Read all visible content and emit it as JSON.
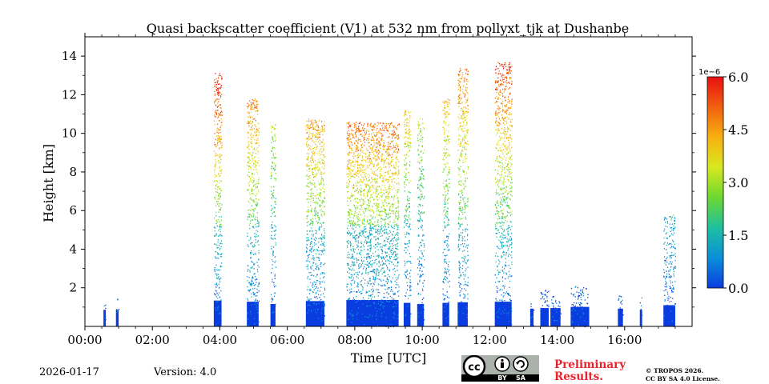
{
  "chart_data": {
    "type": "heatmap",
    "title": "Quasi backscatter coefficient (V1) at 532 nm from pollyxt_tjk at Dushanbe",
    "xlabel": "Time [UTC]",
    "ylabel": "Height [km]",
    "xlim": [
      0,
      18
    ],
    "ylim": [
      0,
      15
    ],
    "x_ticks": [
      0,
      2,
      4,
      6,
      8,
      10,
      12,
      14,
      16
    ],
    "x_tick_labels": [
      "00:00",
      "02:00",
      "04:00",
      "06:00",
      "08:00",
      "10:00",
      "12:00",
      "14:00",
      "16:00"
    ],
    "y_ticks": [
      2,
      4,
      6,
      8,
      10,
      12,
      14
    ],
    "y_tick_labels": [
      "2",
      "4",
      "6",
      "8",
      "10",
      "12",
      "14"
    ],
    "colorbar": {
      "min": 0.0,
      "max": 6.0,
      "exponent_label": "1e−6",
      "ticks": [
        0.0,
        1.5,
        3.0,
        4.5,
        6.0
      ],
      "tick_labels": [
        "0.0",
        "1.5",
        "3.0",
        "4.5",
        "6.0"
      ],
      "colormap": [
        "#0a3de0",
        "#0a8fd8",
        "#1ec0a0",
        "#6cd830",
        "#d8e820",
        "#f8b010",
        "#f06010",
        "#e81010"
      ]
    },
    "signal_columns": [
      {
        "t_start": 0.55,
        "t_end": 0.62,
        "top_km": 1.3,
        "strength": 0.1
      },
      {
        "t_start": 0.92,
        "t_end": 1.0,
        "top_km": 1.6,
        "strength": 0.1
      },
      {
        "t_start": 3.82,
        "t_end": 4.05,
        "top_km": 13.2,
        "strength": 0.9
      },
      {
        "t_start": 4.8,
        "t_end": 5.15,
        "top_km": 11.8,
        "strength": 0.8
      },
      {
        "t_start": 5.5,
        "t_end": 5.65,
        "top_km": 10.5,
        "strength": 0.6
      },
      {
        "t_start": 6.55,
        "t_end": 7.1,
        "top_km": 10.8,
        "strength": 0.85
      },
      {
        "t_start": 7.75,
        "t_end": 9.3,
        "top_km": 10.6,
        "strength": 0.95
      },
      {
        "t_start": 9.45,
        "t_end": 9.65,
        "top_km": 11.2,
        "strength": 0.7
      },
      {
        "t_start": 9.85,
        "t_end": 10.05,
        "top_km": 10.8,
        "strength": 0.6
      },
      {
        "t_start": 10.6,
        "t_end": 10.8,
        "top_km": 11.8,
        "strength": 0.7
      },
      {
        "t_start": 11.05,
        "t_end": 11.35,
        "top_km": 13.4,
        "strength": 0.75
      },
      {
        "t_start": 12.15,
        "t_end": 12.65,
        "top_km": 13.7,
        "strength": 0.8
      },
      {
        "t_start": 13.2,
        "t_end": 13.3,
        "top_km": 1.3,
        "strength": 0.2
      },
      {
        "t_start": 13.5,
        "t_end": 13.75,
        "top_km": 2.0,
        "strength": 0.25
      },
      {
        "t_start": 13.8,
        "t_end": 14.1,
        "top_km": 1.6,
        "strength": 0.25
      },
      {
        "t_start": 14.4,
        "t_end": 14.95,
        "top_km": 2.1,
        "strength": 0.35
      },
      {
        "t_start": 15.8,
        "t_end": 15.95,
        "top_km": 1.7,
        "strength": 0.2
      },
      {
        "t_start": 16.45,
        "t_end": 16.52,
        "top_km": 1.8,
        "strength": 0.1
      },
      {
        "t_start": 17.15,
        "t_end": 17.5,
        "top_km": 5.8,
        "strength": 0.5
      }
    ]
  },
  "footer": {
    "date": "2026-01-17",
    "version": "Version: 4.0",
    "preliminary_line1": "Preliminary",
    "preliminary_line2": "Results.",
    "copyright_line1": "© TROPOS 2026.",
    "copyright_line2": "CC BY SA 4.0 License.",
    "cc_badge_text": [
      "cc",
      "BY",
      "SA"
    ]
  }
}
